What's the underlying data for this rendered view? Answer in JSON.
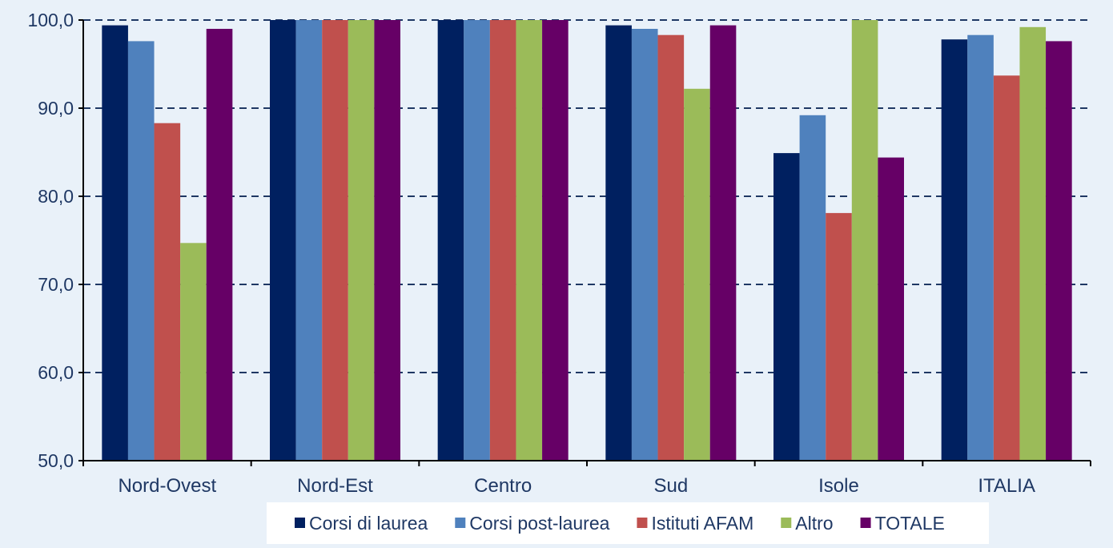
{
  "chart_data": {
    "type": "bar",
    "title": "",
    "xlabel": "",
    "ylabel": "",
    "ylim": [
      50,
      100
    ],
    "yticks": [
      "50,0",
      "60,0",
      "70,0",
      "80,0",
      "90,0",
      "100,0"
    ],
    "categories": [
      "Nord-Ovest",
      "Nord-Est",
      "Centro",
      "Sud",
      "Isole",
      "ITALIA"
    ],
    "series": [
      {
        "name": "Corsi di laurea",
        "color": "#002060",
        "values": [
          99.4,
          100.0,
          100.0,
          99.4,
          84.9,
          97.8
        ]
      },
      {
        "name": "Corsi post-laurea",
        "color": "#4f81bd",
        "values": [
          97.6,
          100.0,
          100.0,
          99.0,
          89.2,
          98.3
        ]
      },
      {
        "name": "Istituti AFAM",
        "color": "#c0504d",
        "values": [
          88.3,
          100.0,
          100.0,
          98.3,
          78.1,
          93.7
        ]
      },
      {
        "name": "Altro",
        "color": "#9bbb59",
        "values": [
          74.7,
          100.0,
          100.0,
          92.2,
          100.0,
          99.2
        ]
      },
      {
        "name": "TOTALE",
        "color": "#660066",
        "values": [
          99.0,
          100.0,
          100.0,
          99.4,
          84.4,
          97.6
        ]
      }
    ],
    "grid": true,
    "gridstyle": "dashed",
    "legend_position": "bottom",
    "background": "#e9f1f9"
  }
}
